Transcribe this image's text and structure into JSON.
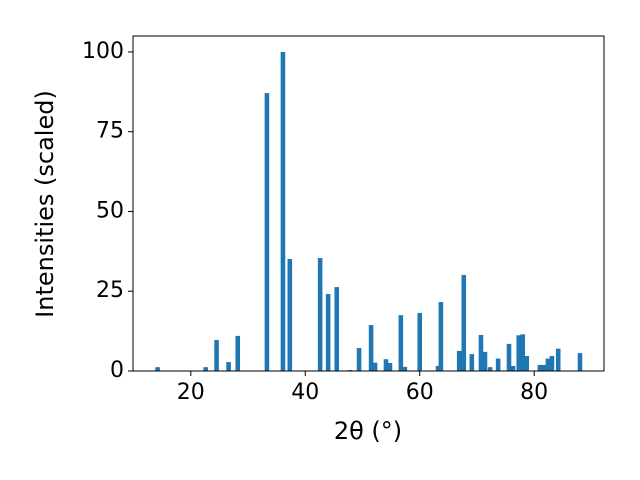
{
  "chart_data": {
    "type": "bar",
    "x": [
      14.2,
      22.6,
      24.5,
      26.6,
      28.2,
      33.3,
      36.1,
      37.3,
      42.6,
      44.0,
      45.5,
      47.8,
      49.4,
      51.5,
      52.2,
      54.1,
      54.8,
      56.7,
      57.4,
      60.0,
      63.2,
      63.7,
      66.9,
      67.7,
      69.1,
      70.7,
      71.4,
      72.3,
      73.7,
      75.6,
      76.3,
      77.3,
      78.0,
      78.7,
      81.0,
      81.7,
      82.4,
      83.1,
      84.2,
      88.0
    ],
    "values": [
      1.2,
      1.2,
      9.7,
      2.8,
      11.0,
      87.1,
      100,
      35.1,
      35.4,
      24.1,
      26.3,
      0.3,
      7.2,
      14.4,
      2.6,
      3.7,
      2.5,
      17.5,
      1.3,
      18.2,
      1.6,
      21.6,
      6.3,
      30.1,
      5.3,
      11.3,
      6.0,
      1.2,
      3.9,
      8.5,
      1.6,
      11.2,
      11.5,
      4.7,
      1.9,
      1.9,
      3.9,
      4.7,
      7.0,
      5.6
    ],
    "color": "#1f77b4",
    "xlim": [
      9.9,
      92.2
    ],
    "ylim": [
      0,
      105
    ],
    "xticks": [
      20,
      40,
      60,
      80
    ],
    "yticks": [
      0,
      25,
      50,
      75,
      100
    ],
    "xlabel": "2θ (°)",
    "ylabel": "Intensities (scaled)"
  }
}
